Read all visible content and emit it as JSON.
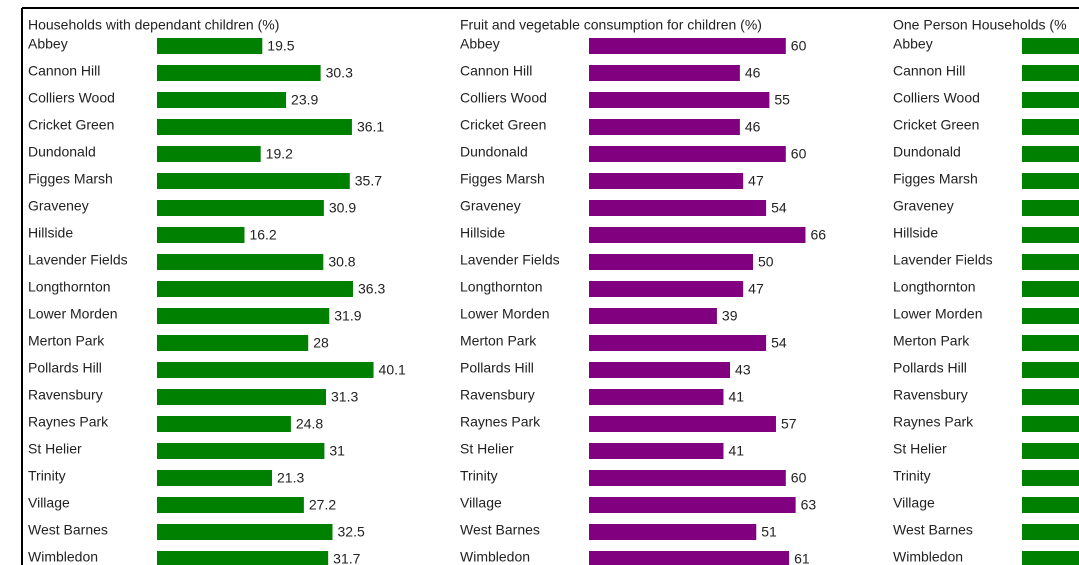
{
  "chart_data": [
    {
      "type": "bar",
      "orientation": "horizontal",
      "title": "Households with dependant children (%)",
      "categories": [
        "Abbey",
        "Cannon Hill",
        "Colliers Wood",
        "Cricket Green",
        "Dundonald",
        "Figges Marsh",
        "Graveney",
        "Hillside",
        "Lavender Fields",
        "Longthornton",
        "Lower Morden",
        "Merton Park",
        "Pollards Hill",
        "Ravensbury",
        "Raynes Park",
        "St Helier",
        "Trinity",
        "Village",
        "West Barnes",
        "Wimbledon"
      ],
      "values": [
        19.5,
        30.3,
        23.9,
        36.1,
        19.2,
        35.7,
        30.9,
        16.2,
        30.8,
        36.3,
        31.9,
        28,
        40.1,
        31.3,
        24.8,
        31,
        21.3,
        27.2,
        32.5,
        31.7
      ],
      "color": "#008000"
    },
    {
      "type": "bar",
      "orientation": "horizontal",
      "title": "Fruit and vegetable consumption for children (%)",
      "categories": [
        "Abbey",
        "Cannon Hill",
        "Colliers Wood",
        "Cricket Green",
        "Dundonald",
        "Figges Marsh",
        "Graveney",
        "Hillside",
        "Lavender Fields",
        "Longthornton",
        "Lower Morden",
        "Merton Park",
        "Pollards Hill",
        "Ravensbury",
        "Raynes Park",
        "St Helier",
        "Trinity",
        "Village",
        "West Barnes",
        "Wimbledon"
      ],
      "values": [
        60,
        46,
        55,
        46,
        60,
        47,
        54,
        66,
        50,
        47,
        39,
        54,
        43,
        41,
        57,
        41,
        60,
        63,
        51,
        61
      ],
      "color": "#800080"
    },
    {
      "type": "clipped-bar",
      "orientation": "horizontal",
      "title": "One Person Households (%",
      "categories": [
        "Abbey",
        "Cannon Hill",
        "Colliers Wood",
        "Cricket Green",
        "Dundonald",
        "Figges Marsh",
        "Graveney",
        "Hillside",
        "Lavender Fields",
        "Longthornton",
        "Lower Morden",
        "Merton Park",
        "Pollards Hill",
        "Ravensbury",
        "Raynes Park",
        "St Helier",
        "Trinity",
        "Village",
        "West Barnes",
        "Wimbledon"
      ],
      "color": "#008000"
    }
  ]
}
